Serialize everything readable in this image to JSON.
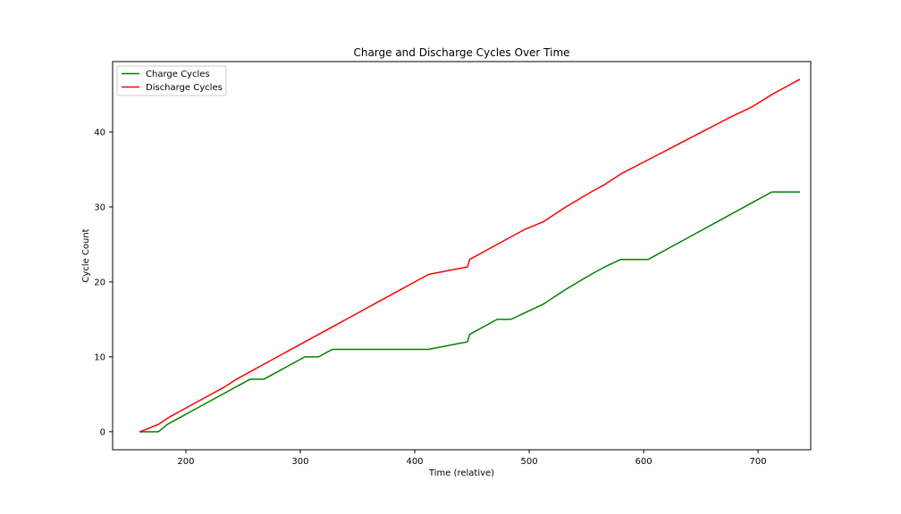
{
  "chart_data": {
    "type": "line",
    "title": "Charge and Discharge Cycles Over Time",
    "xlabel": "Time (relative)",
    "ylabel": "Cycle Count",
    "xlim": [
      136,
      746
    ],
    "ylim": [
      -2.4,
      49.4
    ],
    "xticks": [
      200,
      300,
      400,
      500,
      600,
      700
    ],
    "yticks": [
      0,
      10,
      20,
      30,
      40
    ],
    "grid": false,
    "legend_position": "top-left",
    "series": [
      {
        "name": "Charge Cycles",
        "color": "#008000",
        "points": [
          [
            160,
            0
          ],
          [
            176,
            0
          ],
          [
            184,
            1
          ],
          [
            196,
            2
          ],
          [
            208,
            3
          ],
          [
            220,
            4
          ],
          [
            232,
            5
          ],
          [
            244,
            6
          ],
          [
            256,
            7
          ],
          [
            268,
            7
          ],
          [
            280,
            8
          ],
          [
            292,
            9
          ],
          [
            304,
            10
          ],
          [
            316,
            10
          ],
          [
            328,
            11
          ],
          [
            412,
            11
          ],
          [
            446,
            12
          ],
          [
            448,
            13
          ],
          [
            472,
            15
          ],
          [
            484,
            15
          ],
          [
            498,
            16
          ],
          [
            512,
            17
          ],
          [
            532,
            19
          ],
          [
            554,
            21
          ],
          [
            566,
            22
          ],
          [
            580,
            23
          ],
          [
            604,
            23
          ],
          [
            628,
            25
          ],
          [
            652,
            27
          ],
          [
            676,
            29
          ],
          [
            694,
            30.5
          ],
          [
            712,
            32
          ],
          [
            736,
            32
          ]
        ]
      },
      {
        "name": "Discharge Cycles",
        "color": "#ff0000",
        "points": [
          [
            160,
            0
          ],
          [
            176,
            1
          ],
          [
            186,
            2
          ],
          [
            198,
            3
          ],
          [
            210,
            4
          ],
          [
            222,
            5
          ],
          [
            234,
            6
          ],
          [
            244,
            7
          ],
          [
            256,
            8
          ],
          [
            268,
            9
          ],
          [
            280,
            10
          ],
          [
            292,
            11
          ],
          [
            304,
            12
          ],
          [
            316,
            13
          ],
          [
            328,
            14
          ],
          [
            340,
            15
          ],
          [
            352,
            16
          ],
          [
            364,
            17
          ],
          [
            376,
            18
          ],
          [
            388,
            19
          ],
          [
            400,
            20
          ],
          [
            412,
            21
          ],
          [
            446,
            22
          ],
          [
            448,
            23
          ],
          [
            472,
            25
          ],
          [
            496,
            27
          ],
          [
            512,
            28
          ],
          [
            532,
            30
          ],
          [
            554,
            32
          ],
          [
            566,
            33
          ],
          [
            580,
            34.4
          ],
          [
            604,
            36.3
          ],
          [
            628,
            38.2
          ],
          [
            652,
            40.1
          ],
          [
            676,
            42
          ],
          [
            694,
            43.3
          ],
          [
            712,
            45
          ],
          [
            736,
            47
          ]
        ]
      }
    ]
  }
}
